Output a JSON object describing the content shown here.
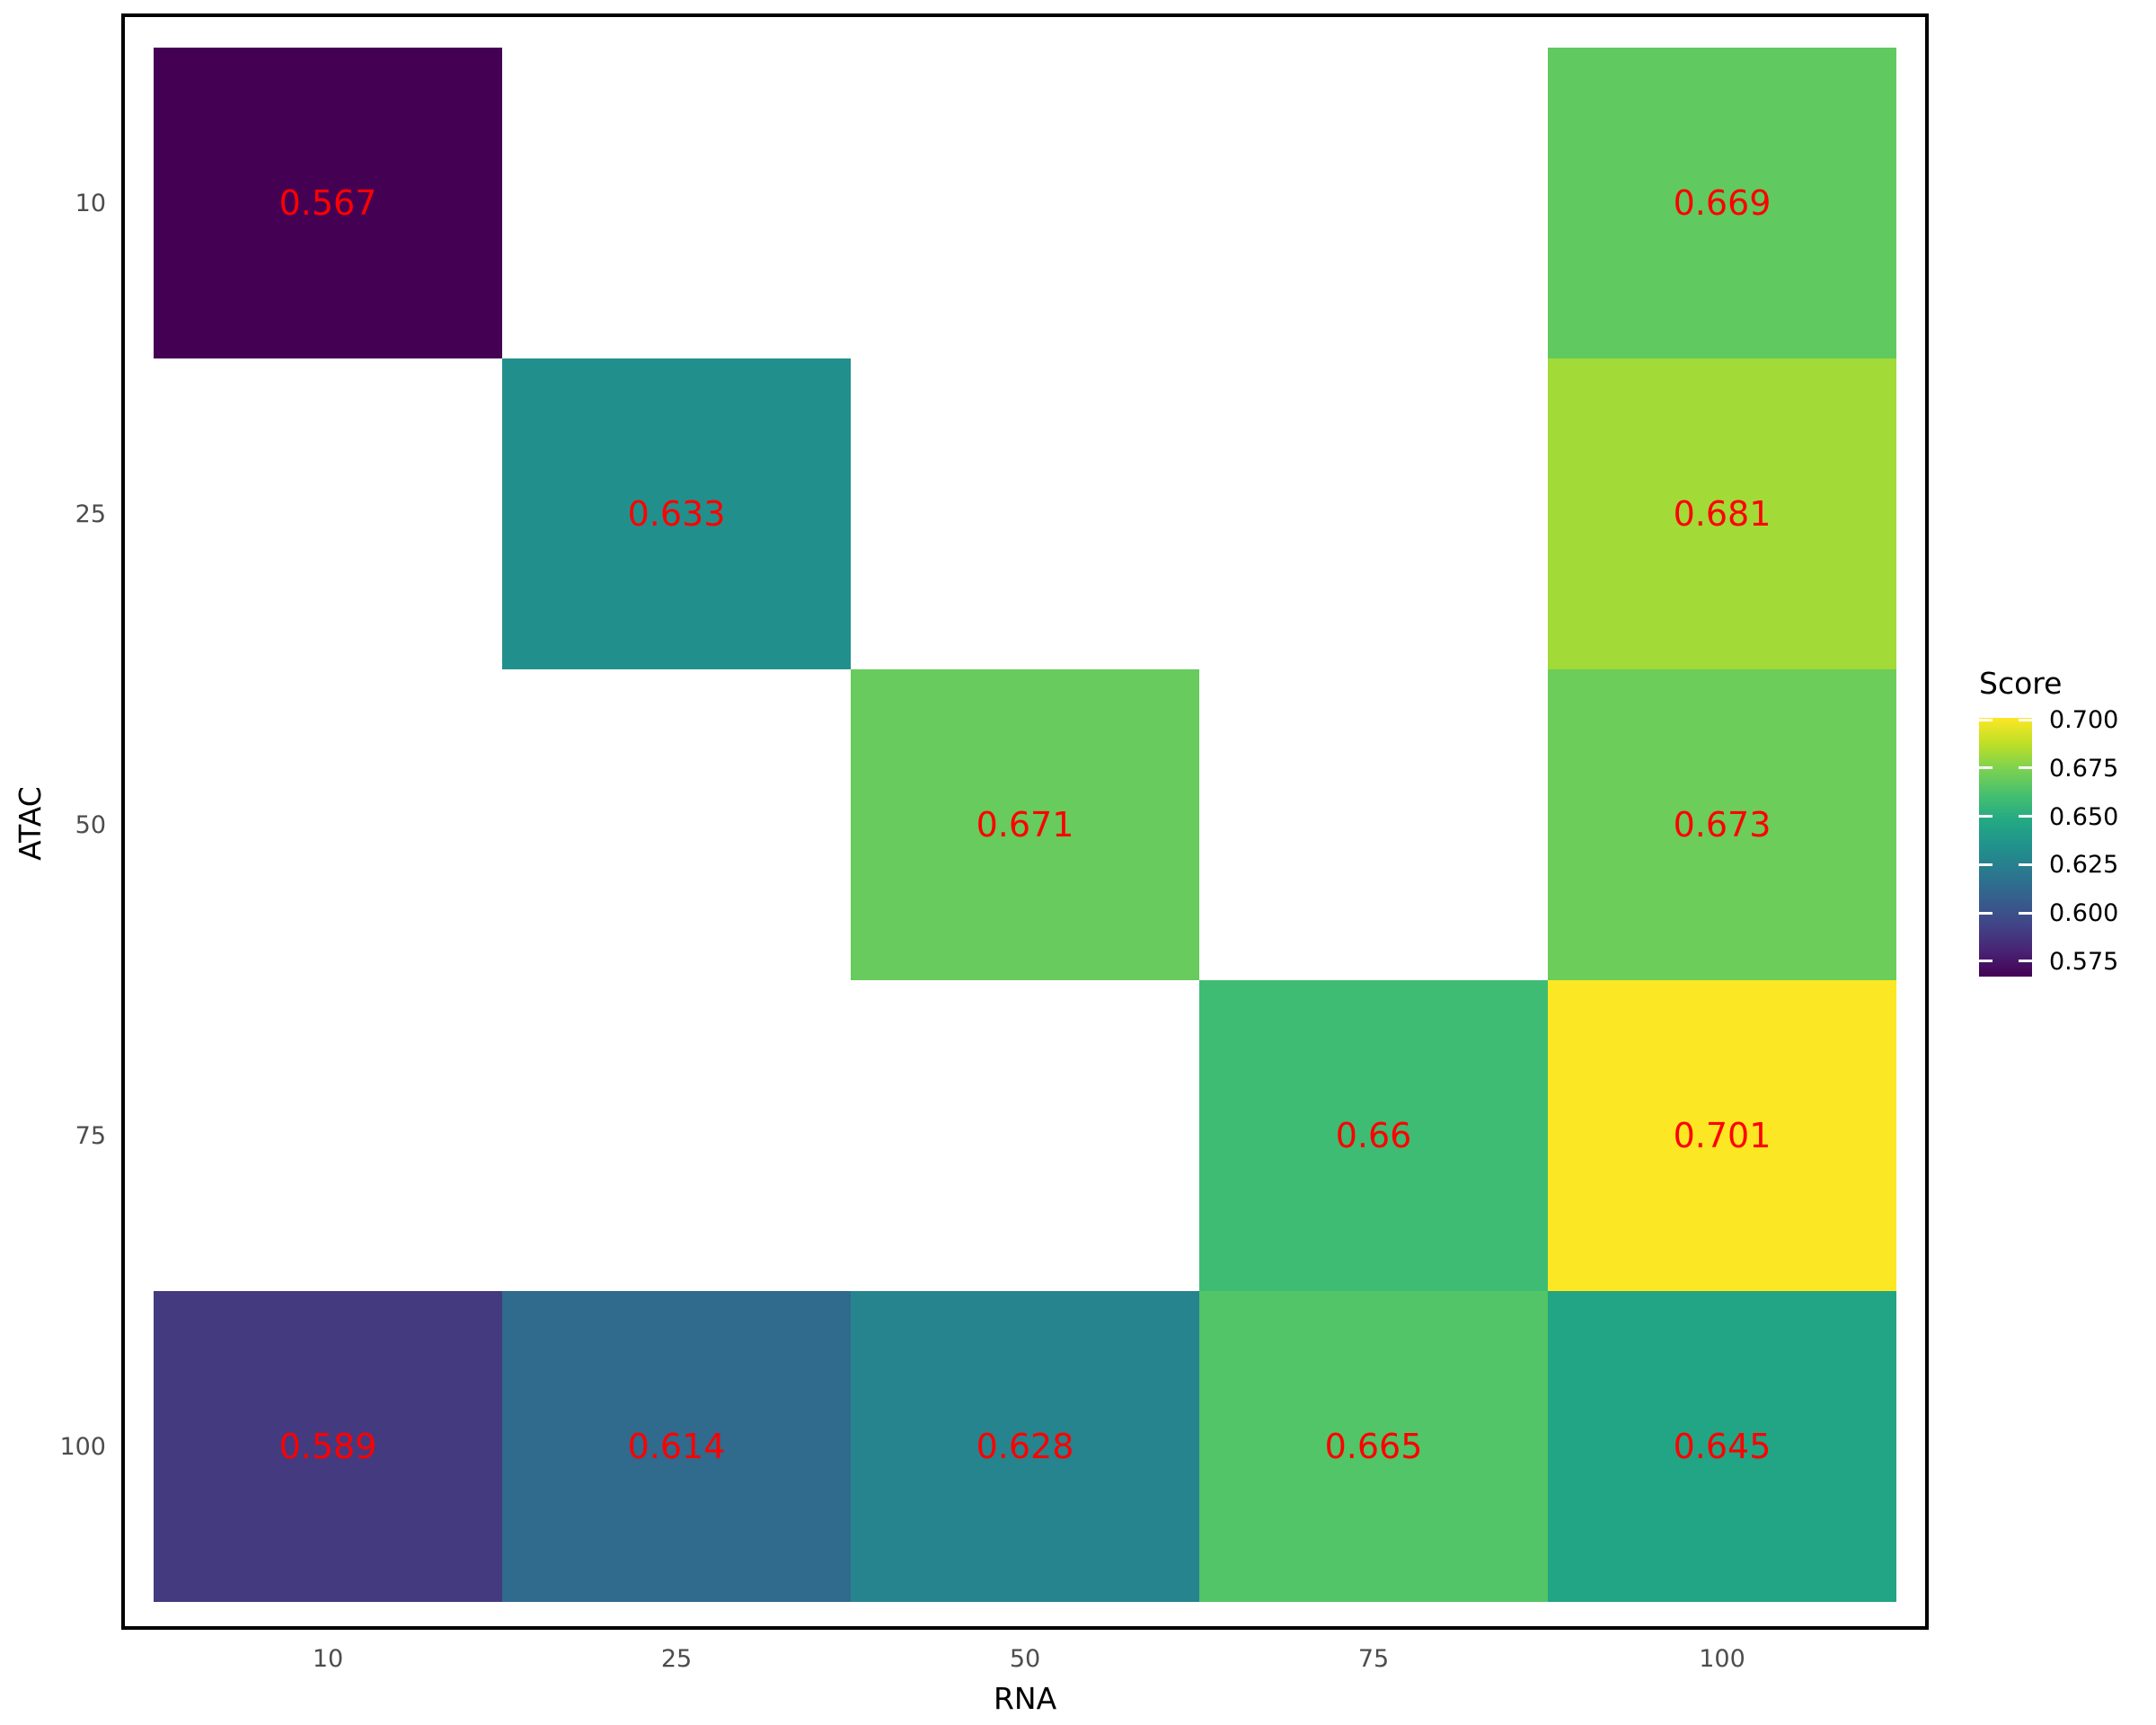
{
  "chart_data": {
    "type": "heatmap",
    "xlabel": "RNA",
    "ylabel": "ATAC",
    "x_categories": [
      "10",
      "25",
      "50",
      "75",
      "100"
    ],
    "y_categories": [
      "10",
      "25",
      "50",
      "75",
      "100"
    ],
    "value_label_color": "#ff0000",
    "axis_tick_label_color": "#4d4d4d",
    "panel_border_color": "#000000",
    "cells": [
      {
        "rna": "10",
        "atac": "10",
        "value": "0.567",
        "color": "#440154"
      },
      {
        "rna": "100",
        "atac": "10",
        "value": "0.669",
        "color": "#60ca60"
      },
      {
        "rna": "25",
        "atac": "25",
        "value": "0.633",
        "color": "#21908c"
      },
      {
        "rna": "100",
        "atac": "25",
        "value": "0.681",
        "color": "#a2da37"
      },
      {
        "rna": "50",
        "atac": "50",
        "value": "0.671",
        "color": "#67cb5d"
      },
      {
        "rna": "100",
        "atac": "50",
        "value": "0.673",
        "color": "#6ccd5a"
      },
      {
        "rna": "75",
        "atac": "75",
        "value": "0.66",
        "color": "#3ebc74"
      },
      {
        "rna": "100",
        "atac": "75",
        "value": "0.701",
        "color": "#fbe723"
      },
      {
        "rna": "10",
        "atac": "100",
        "value": "0.589",
        "color": "#443a80"
      },
      {
        "rna": "25",
        "atac": "100",
        "value": "0.614",
        "color": "#306a8d"
      },
      {
        "rna": "50",
        "atac": "100",
        "value": "0.628",
        "color": "#26848e"
      },
      {
        "rna": "75",
        "atac": "100",
        "value": "0.665",
        "color": "#52c568"
      },
      {
        "rna": "100",
        "atac": "100",
        "value": "0.645",
        "color": "#22a585"
      }
    ],
    "legend": {
      "title": "Score",
      "colormap": "viridis",
      "limits": [
        0.567,
        0.701
      ],
      "ticks": [
        "0.700",
        "0.675",
        "0.650",
        "0.625",
        "0.600",
        "0.575"
      ]
    },
    "grid": false,
    "legend_position": "right"
  }
}
